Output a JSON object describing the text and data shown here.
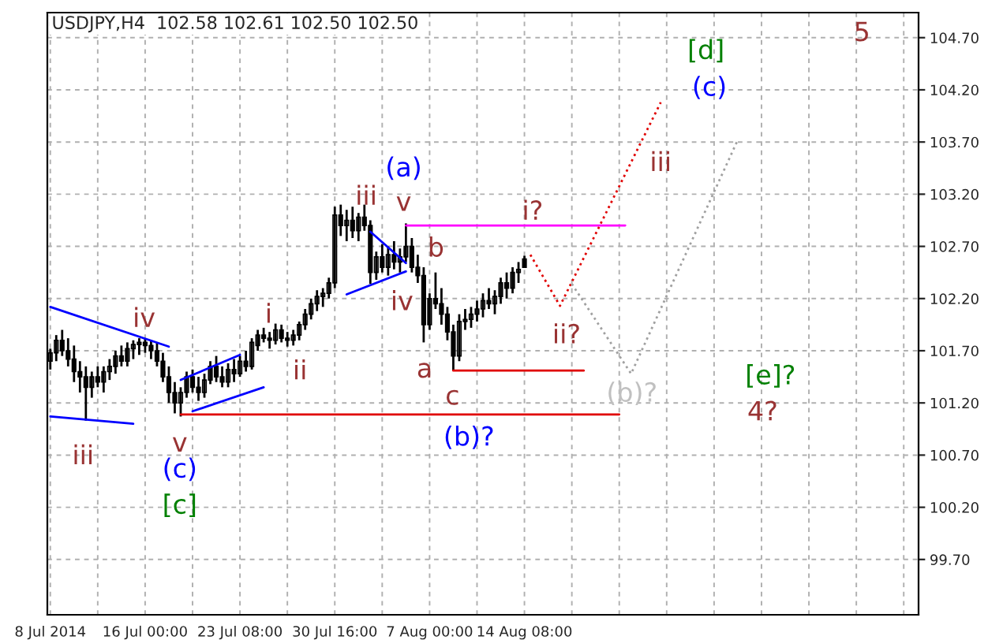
{
  "chart_data": {
    "type": "candlestick",
    "title": "USDJPY,H4  102.58 102.61 102.50 102.50",
    "categories": [
      "8 Jul 2014",
      null,
      null,
      null,
      null,
      null,
      null,
      null,
      null,
      null,
      null,
      null,
      null,
      null,
      null,
      null,
      "16 Jul 00:00",
      null,
      null,
      null,
      null,
      null,
      null,
      null,
      null,
      null,
      null,
      null,
      null,
      null,
      null,
      null,
      "23 Jul 08:00",
      null,
      null,
      null,
      null,
      null,
      null,
      null,
      null,
      null,
      null,
      null,
      null,
      null,
      null,
      null,
      "30 Jul 16:00",
      null,
      null,
      null,
      null,
      null,
      null,
      null,
      null,
      null,
      null,
      null,
      null,
      null,
      null,
      null,
      "7 Aug 00:00",
      null,
      null,
      null,
      null,
      null,
      null,
      null,
      null,
      null,
      null,
      null,
      null,
      null,
      null,
      null,
      "14 Aug 08:00",
      null,
      null,
      null,
      null,
      null,
      null,
      null,
      null,
      null,
      null,
      null,
      null,
      null,
      null,
      null,
      null,
      null,
      null,
      null,
      null,
      null,
      null,
      null,
      null,
      null,
      null,
      null,
      null,
      null,
      null,
      null,
      null,
      null,
      null,
      null,
      null,
      null,
      null,
      null,
      null,
      null,
      null,
      null,
      null,
      null,
      null,
      null,
      null,
      null,
      null,
      null,
      null,
      null,
      null,
      null,
      null,
      null,
      null,
      null,
      null,
      null,
      null,
      null,
      null,
      null,
      null
    ],
    "ohlc": [
      [
        101.6,
        101.72,
        101.52,
        101.68
      ],
      [
        101.68,
        101.85,
        101.6,
        101.8
      ],
      [
        101.8,
        101.9,
        101.65,
        101.7
      ],
      [
        101.7,
        101.82,
        101.55,
        101.62
      ],
      [
        101.62,
        101.75,
        101.4,
        101.5
      ],
      [
        101.5,
        101.6,
        101.3,
        101.45
      ],
      [
        101.45,
        101.55,
        101.03,
        101.35
      ],
      [
        101.35,
        101.5,
        101.25,
        101.45
      ],
      [
        101.45,
        101.55,
        101.35,
        101.4
      ],
      [
        101.4,
        101.55,
        101.3,
        101.5
      ],
      [
        101.5,
        101.62,
        101.42,
        101.55
      ],
      [
        101.55,
        101.7,
        101.48,
        101.65
      ],
      [
        101.65,
        101.75,
        101.55,
        101.6
      ],
      [
        101.6,
        101.78,
        101.55,
        101.72
      ],
      [
        101.72,
        101.8,
        101.62,
        101.76
      ],
      [
        101.76,
        101.82,
        101.66,
        101.78
      ],
      [
        101.78,
        101.82,
        101.68,
        101.75
      ],
      [
        101.75,
        101.8,
        101.62,
        101.7
      ],
      [
        101.7,
        101.78,
        101.55,
        101.6
      ],
      [
        101.6,
        101.68,
        101.4,
        101.45
      ],
      [
        101.45,
        101.55,
        101.2,
        101.3
      ],
      [
        101.3,
        101.4,
        101.1,
        101.2
      ],
      [
        101.2,
        101.35,
        101.07,
        101.3
      ],
      [
        101.3,
        101.5,
        101.25,
        101.45
      ],
      [
        101.45,
        101.52,
        101.3,
        101.35
      ],
      [
        101.35,
        101.45,
        101.22,
        101.3
      ],
      [
        101.3,
        101.48,
        101.25,
        101.42
      ],
      [
        101.42,
        101.6,
        101.38,
        101.55
      ],
      [
        101.55,
        101.65,
        101.4,
        101.45
      ],
      [
        101.45,
        101.55,
        101.35,
        101.4
      ],
      [
        101.4,
        101.58,
        101.35,
        101.52
      ],
      [
        101.52,
        101.62,
        101.4,
        101.48
      ],
      [
        101.48,
        101.65,
        101.45,
        101.6
      ],
      [
        101.6,
        101.7,
        101.5,
        101.55
      ],
      [
        101.55,
        101.82,
        101.52,
        101.78
      ],
      [
        101.75,
        101.9,
        101.7,
        101.85
      ],
      [
        101.85,
        101.92,
        101.78,
        101.82
      ],
      [
        101.82,
        101.88,
        101.72,
        101.8
      ],
      [
        101.8,
        101.96,
        101.76,
        101.9
      ],
      [
        101.9,
        101.95,
        101.78,
        101.82
      ],
      [
        101.82,
        101.88,
        101.74,
        101.8
      ],
      [
        101.8,
        101.9,
        101.75,
        101.85
      ],
      [
        101.85,
        101.98,
        101.8,
        101.95
      ],
      [
        101.95,
        102.1,
        101.9,
        102.05
      ],
      [
        102.05,
        102.2,
        102.0,
        102.15
      ],
      [
        102.15,
        102.28,
        102.08,
        102.22
      ],
      [
        102.22,
        102.3,
        102.12,
        102.25
      ],
      [
        102.25,
        102.4,
        102.2,
        102.35
      ],
      [
        102.35,
        103.08,
        102.3,
        103.0
      ],
      [
        103.0,
        103.1,
        102.8,
        102.9
      ],
      [
        102.9,
        103.05,
        102.75,
        102.95
      ],
      [
        102.95,
        103.08,
        102.78,
        102.85
      ],
      [
        102.85,
        103.02,
        102.75,
        102.98
      ],
      [
        102.98,
        103.1,
        102.85,
        102.9
      ],
      [
        102.9,
        102.95,
        102.34,
        102.45
      ],
      [
        102.45,
        102.65,
        102.38,
        102.6
      ],
      [
        102.6,
        102.72,
        102.45,
        102.5
      ],
      [
        102.5,
        102.7,
        102.42,
        102.62
      ],
      [
        102.62,
        102.75,
        102.48,
        102.55
      ],
      [
        102.55,
        102.68,
        102.45,
        102.6
      ],
      [
        102.6,
        102.92,
        102.55,
        102.7
      ],
      [
        102.7,
        102.78,
        102.45,
        102.5
      ],
      [
        102.5,
        102.62,
        102.35,
        102.42
      ],
      [
        102.42,
        102.5,
        101.78,
        101.95
      ],
      [
        101.95,
        102.25,
        101.9,
        102.2
      ],
      [
        102.2,
        102.45,
        102.1,
        102.15
      ],
      [
        102.15,
        102.3,
        101.95,
        102.05
      ],
      [
        102.05,
        102.12,
        101.8,
        101.88
      ],
      [
        101.88,
        101.95,
        101.51,
        101.65
      ],
      [
        101.65,
        102.05,
        101.6,
        101.98
      ],
      [
        101.98,
        102.1,
        101.9,
        102.0
      ],
      [
        102.0,
        102.12,
        101.92,
        102.05
      ],
      [
        102.05,
        102.18,
        101.98,
        102.1
      ],
      [
        102.1,
        102.25,
        102.02,
        102.18
      ],
      [
        102.18,
        102.3,
        102.1,
        102.15
      ],
      [
        102.15,
        102.28,
        102.05,
        102.22
      ],
      [
        102.22,
        102.4,
        102.15,
        102.35
      ],
      [
        102.35,
        102.45,
        102.2,
        102.3
      ],
      [
        102.3,
        102.5,
        102.25,
        102.45
      ],
      [
        102.45,
        102.55,
        102.35,
        102.48
      ],
      [
        102.58,
        102.61,
        102.5,
        102.5
      ],
      null,
      null,
      null,
      null,
      null,
      null,
      null,
      null,
      null,
      null,
      null,
      null,
      null,
      null,
      null,
      null,
      null,
      null,
      null,
      null,
      null,
      null,
      null,
      null,
      null,
      null,
      null,
      null,
      null,
      null,
      null,
      null,
      null,
      null,
      null,
      null,
      null,
      null,
      null,
      null,
      null,
      null,
      null,
      null,
      null,
      null,
      null,
      null,
      null,
      null,
      null,
      null,
      null,
      null,
      null,
      null,
      null,
      null,
      null,
      null,
      null,
      null,
      null,
      null,
      null,
      null
    ],
    "color": "#000000",
    "series": [
      {
        "type": "line",
        "color": "#0000ff",
        "line_style": "solid",
        "values": [
          102.12,
          null,
          null,
          null,
          null,
          null,
          null,
          null,
          null,
          null,
          null,
          null,
          null,
          null,
          null,
          null,
          null,
          null,
          null,
          null,
          101.74,
          null,
          null,
          null,
          null,
          null,
          null,
          null,
          null,
          null,
          null,
          null,
          null,
          null,
          null,
          null,
          null,
          null,
          null,
          null,
          null,
          null,
          null,
          null,
          null,
          null,
          null,
          null,
          null,
          null,
          null,
          null,
          null,
          null,
          null,
          null,
          null,
          null,
          null,
          null,
          null,
          null,
          null,
          null,
          null,
          null,
          null,
          null,
          null,
          null,
          null,
          null,
          null,
          null,
          null,
          null,
          null,
          null,
          null,
          null,
          null,
          null,
          null,
          null,
          null,
          null,
          null,
          null,
          null,
          null,
          null,
          null,
          null,
          null,
          null,
          null,
          null,
          null,
          null,
          null,
          null,
          null,
          null,
          null,
          null,
          null,
          null,
          null,
          null,
          null,
          null,
          null,
          null,
          null,
          null,
          null,
          null,
          null,
          null,
          null,
          null,
          null,
          null,
          null,
          null,
          null,
          null,
          null,
          null,
          null,
          null,
          null,
          null,
          null,
          null,
          null,
          null,
          null,
          null,
          null,
          null,
          null,
          null,
          null,
          null,
          null,
          null
        ]
      },
      {
        "type": "line",
        "color": "#0000ff",
        "line_style": "solid",
        "values": [
          101.07,
          null,
          null,
          null,
          null,
          null,
          null,
          null,
          null,
          null,
          null,
          null,
          null,
          null,
          101.0,
          null,
          null,
          null,
          null,
          null,
          null,
          null,
          null,
          null,
          null,
          null,
          null,
          null,
          null,
          null,
          null,
          null,
          null,
          null,
          null,
          null,
          null,
          null,
          null,
          null,
          null,
          null,
          null,
          null,
          null,
          null,
          null,
          null,
          null,
          null,
          null,
          null,
          null,
          null,
          null,
          null,
          null,
          null,
          null,
          null,
          null,
          null,
          null,
          null,
          null,
          null,
          null,
          null,
          null,
          null,
          null,
          null,
          null,
          null,
          null,
          null,
          null,
          null,
          null,
          null,
          null,
          null,
          null,
          null,
          null,
          null,
          null,
          null,
          null,
          null,
          null,
          null,
          null,
          null,
          null,
          null,
          null,
          null,
          null,
          null,
          null,
          null,
          null,
          null,
          null,
          null,
          null,
          null,
          null,
          null,
          null,
          null,
          null,
          null,
          null,
          null,
          null,
          null,
          null,
          null,
          null,
          null,
          null,
          null,
          null,
          null,
          null,
          null,
          null,
          null,
          null,
          null,
          null,
          null,
          null,
          null,
          null,
          null,
          null,
          null,
          null,
          null,
          null,
          null,
          null,
          null,
          null
        ]
      },
      {
        "type": "line",
        "color": "#0000ff",
        "line_style": "solid",
        "values": [
          null,
          null,
          null,
          null,
          null,
          null,
          null,
          null,
          null,
          null,
          null,
          null,
          null,
          null,
          null,
          null,
          null,
          null,
          null,
          null,
          null,
          null,
          101.42,
          null,
          null,
          null,
          null,
          null,
          null,
          null,
          null,
          null,
          101.66,
          null,
          null,
          null,
          null,
          null,
          null,
          null,
          null,
          null,
          null,
          null,
          null,
          null,
          null,
          null,
          null,
          null,
          null,
          null,
          null,
          null,
          null,
          null,
          null,
          null,
          null,
          null,
          null,
          null,
          null,
          null,
          null,
          null,
          null,
          null,
          null,
          null,
          null,
          null,
          null,
          null,
          null,
          null,
          null,
          null,
          null,
          null,
          null,
          null,
          null,
          null,
          null,
          null,
          null,
          null,
          null,
          null,
          null,
          null,
          null,
          null,
          null,
          null,
          null,
          null,
          null,
          null,
          null,
          null,
          null,
          null,
          null,
          null,
          null,
          null,
          null,
          null,
          null,
          null,
          null,
          null,
          null,
          null,
          null,
          null,
          null,
          null,
          null,
          null,
          null,
          null,
          null,
          null,
          null,
          null,
          null,
          null,
          null,
          null,
          null,
          null,
          null,
          null,
          null,
          null,
          null,
          null,
          null,
          null,
          null,
          null,
          null,
          null,
          null
        ]
      },
      {
        "type": "line",
        "color": "#0000ff",
        "line_style": "solid",
        "values": [
          null,
          null,
          null,
          null,
          null,
          null,
          null,
          null,
          null,
          null,
          null,
          null,
          null,
          null,
          null,
          null,
          null,
          null,
          null,
          null,
          null,
          null,
          null,
          null,
          101.12,
          null,
          null,
          null,
          null,
          null,
          null,
          null,
          null,
          null,
          null,
          null,
          101.35,
          null,
          null,
          null,
          null,
          null,
          null,
          null,
          null,
          null,
          null,
          null,
          null,
          null,
          null,
          null,
          null,
          null,
          null,
          null,
          null,
          null,
          null,
          null,
          null,
          null,
          null,
          null,
          null,
          null,
          null,
          null,
          null,
          null,
          null,
          null,
          null,
          null,
          null,
          null,
          null,
          null,
          null,
          null,
          null,
          null,
          null,
          null,
          null,
          null,
          null,
          null,
          null,
          null,
          null,
          null,
          null,
          null,
          null,
          null,
          null,
          null,
          null,
          null,
          null,
          null,
          null,
          null,
          null,
          null,
          null,
          null,
          null,
          null,
          null,
          null,
          null,
          null,
          null,
          null,
          null,
          null,
          null,
          null,
          null,
          null,
          null,
          null,
          null,
          null,
          null,
          null,
          null,
          null,
          null,
          null,
          null,
          null,
          null,
          null,
          null,
          null,
          null,
          null,
          null,
          null,
          null,
          null,
          null,
          null,
          null
        ]
      },
      {
        "type": "line",
        "color": "#0000ff",
        "line_style": "solid",
        "values": [
          null,
          null,
          null,
          null,
          null,
          null,
          null,
          null,
          null,
          null,
          null,
          null,
          null,
          null,
          null,
          null,
          null,
          null,
          null,
          null,
          null,
          null,
          null,
          null,
          null,
          null,
          null,
          null,
          null,
          null,
          null,
          null,
          null,
          null,
          null,
          null,
          null,
          null,
          null,
          null,
          null,
          null,
          null,
          null,
          null,
          null,
          null,
          null,
          null,
          null,
          null,
          null,
          null,
          null,
          102.84,
          null,
          null,
          null,
          null,
          null,
          102.54,
          null,
          null,
          null,
          null,
          null,
          null,
          null,
          null,
          null,
          null,
          null,
          null,
          null,
          null,
          null,
          null,
          null,
          null,
          null,
          null,
          null,
          null,
          null,
          null,
          null,
          null,
          null,
          null,
          null,
          null,
          null,
          null,
          null,
          null,
          null,
          null,
          null,
          null,
          null,
          null,
          null,
          null,
          null,
          null,
          null,
          null,
          null,
          null,
          null,
          null,
          null,
          null,
          null,
          null,
          null,
          null,
          null,
          null,
          null,
          null,
          null,
          null,
          null,
          null,
          null,
          null,
          null,
          null,
          null,
          null,
          null,
          null,
          null,
          null,
          null,
          null,
          null,
          null,
          null,
          null,
          null,
          null,
          null,
          null,
          null,
          null
        ]
      },
      {
        "type": "line",
        "color": "#0000ff",
        "line_style": "solid",
        "values": [
          null,
          null,
          null,
          null,
          null,
          null,
          null,
          null,
          null,
          null,
          null,
          null,
          null,
          null,
          null,
          null,
          null,
          null,
          null,
          null,
          null,
          null,
          null,
          null,
          null,
          null,
          null,
          null,
          null,
          null,
          null,
          null,
          null,
          null,
          null,
          null,
          null,
          null,
          null,
          null,
          null,
          null,
          null,
          null,
          null,
          null,
          null,
          null,
          null,
          null,
          102.24,
          null,
          null,
          null,
          null,
          null,
          null,
          null,
          null,
          null,
          102.46,
          null,
          null,
          null,
          null,
          null,
          null,
          null,
          null,
          null,
          null,
          null,
          null,
          null,
          null,
          null,
          null,
          null,
          null,
          null,
          null,
          null,
          null,
          null,
          null,
          null,
          null,
          null,
          null,
          null,
          null,
          null,
          null,
          null,
          null,
          null,
          null,
          null,
          null,
          null,
          null,
          null,
          null,
          null,
          null,
          null,
          null,
          null,
          null,
          null,
          null,
          null,
          null,
          null,
          null,
          null,
          null,
          null,
          null,
          null,
          null,
          null,
          null,
          null,
          null,
          null,
          null,
          null,
          null,
          null,
          null,
          null,
          null,
          null,
          null,
          null,
          null,
          null,
          null,
          null,
          null,
          null,
          null,
          null,
          null,
          null,
          null
        ]
      },
      {
        "type": "line",
        "color": "#ff00ff",
        "line_style": "solid",
        "values": [
          null,
          null,
          null,
          null,
          null,
          null,
          null,
          null,
          null,
          null,
          null,
          null,
          null,
          null,
          null,
          null,
          null,
          null,
          null,
          null,
          null,
          null,
          null,
          null,
          null,
          null,
          null,
          null,
          null,
          null,
          null,
          null,
          null,
          null,
          null,
          null,
          null,
          null,
          null,
          null,
          null,
          null,
          null,
          null,
          null,
          null,
          null,
          null,
          null,
          null,
          null,
          null,
          null,
          null,
          null,
          null,
          null,
          null,
          null,
          null,
          102.9,
          null,
          null,
          null,
          null,
          null,
          null,
          null,
          null,
          null,
          null,
          null,
          null,
          null,
          null,
          null,
          null,
          null,
          null,
          null,
          null,
          null,
          null,
          null,
          null,
          null,
          null,
          null,
          null,
          null,
          null,
          null,
          null,
          null,
          null,
          null,
          null,
          102.9,
          null,
          null,
          null,
          null,
          null,
          null,
          null,
          null,
          null,
          null,
          null,
          null,
          null,
          null,
          null,
          null,
          null,
          null,
          null,
          null,
          null,
          null,
          null,
          null,
          null,
          null,
          null,
          null,
          null,
          null,
          null,
          null,
          null,
          null,
          null,
          null,
          null,
          null,
          null,
          null,
          null,
          null,
          null,
          null,
          null,
          null,
          null,
          null,
          null
        ]
      },
      {
        "type": "line",
        "color": "#e00000",
        "line_style": "solid",
        "values": [
          null,
          null,
          null,
          null,
          null,
          null,
          null,
          null,
          null,
          null,
          null,
          null,
          null,
          null,
          null,
          null,
          null,
          null,
          null,
          null,
          null,
          null,
          null,
          null,
          null,
          null,
          null,
          null,
          null,
          null,
          null,
          null,
          null,
          null,
          null,
          null,
          null,
          null,
          null,
          null,
          null,
          null,
          null,
          null,
          null,
          null,
          null,
          null,
          null,
          null,
          null,
          null,
          null,
          null,
          null,
          null,
          null,
          null,
          null,
          null,
          null,
          null,
          null,
          null,
          null,
          null,
          null,
          null,
          101.51,
          null,
          null,
          null,
          null,
          null,
          null,
          null,
          null,
          null,
          null,
          null,
          null,
          null,
          null,
          null,
          null,
          null,
          null,
          null,
          null,
          null,
          101.51,
          null,
          null,
          null,
          null,
          null,
          null,
          null,
          null,
          null,
          null,
          null,
          null,
          null,
          null,
          null,
          null,
          null,
          null,
          null,
          null,
          null,
          null,
          null,
          null,
          null,
          null,
          null,
          null,
          null,
          null,
          null,
          null,
          null,
          null,
          null,
          null,
          null,
          null,
          null,
          null,
          null,
          null,
          null,
          null,
          null,
          null,
          null,
          null,
          null,
          null,
          null,
          null,
          null,
          null,
          null,
          null
        ]
      },
      {
        "type": "line",
        "color": "#e00000",
        "line_style": "solid",
        "values": [
          null,
          null,
          null,
          null,
          null,
          null,
          null,
          null,
          null,
          null,
          null,
          null,
          null,
          null,
          null,
          null,
          null,
          null,
          null,
          null,
          null,
          null,
          101.09,
          null,
          null,
          null,
          null,
          null,
          null,
          null,
          null,
          null,
          null,
          null,
          null,
          null,
          null,
          null,
          null,
          null,
          null,
          null,
          null,
          null,
          null,
          null,
          null,
          null,
          null,
          null,
          null,
          null,
          null,
          null,
          null,
          null,
          null,
          null,
          null,
          null,
          null,
          null,
          null,
          null,
          null,
          null,
          null,
          null,
          null,
          null,
          null,
          null,
          null,
          null,
          null,
          null,
          null,
          null,
          null,
          null,
          null,
          null,
          null,
          null,
          null,
          null,
          null,
          null,
          null,
          null,
          null,
          null,
          null,
          null,
          null,
          null,
          101.09,
          null,
          null,
          null,
          null,
          null,
          null,
          null,
          null,
          null,
          null,
          null,
          null,
          null,
          null,
          null,
          null,
          null,
          null,
          null,
          null,
          null,
          null,
          null,
          null,
          null,
          null,
          null,
          null,
          null,
          null,
          null,
          null,
          null,
          null,
          null,
          null,
          null,
          null,
          null,
          null,
          null,
          null,
          null,
          null,
          null,
          null,
          null,
          null,
          null,
          null
        ]
      },
      {
        "type": "line",
        "color": "#e00000",
        "line_style": "dotted",
        "values": [
          null,
          null,
          null,
          null,
          null,
          null,
          null,
          null,
          null,
          null,
          null,
          null,
          null,
          null,
          null,
          null,
          null,
          null,
          null,
          null,
          null,
          null,
          null,
          null,
          null,
          null,
          null,
          null,
          null,
          null,
          null,
          null,
          null,
          null,
          null,
          null,
          null,
          null,
          null,
          null,
          null,
          null,
          null,
          null,
          null,
          null,
          null,
          null,
          null,
          null,
          null,
          null,
          null,
          null,
          null,
          null,
          null,
          null,
          null,
          null,
          null,
          null,
          null,
          null,
          null,
          null,
          null,
          null,
          null,
          null,
          null,
          null,
          null,
          null,
          null,
          null,
          null,
          null,
          null,
          null,
          null,
          102.62,
          null,
          null,
          null,
          null,
          102.13,
          null,
          null,
          null,
          null,
          null,
          null,
          null,
          null,
          null,
          null,
          null,
          null,
          null,
          null,
          null,
          null,
          104.08,
          null,
          null,
          null,
          null,
          null,
          null,
          null,
          null,
          null,
          null,
          null,
          null,
          null,
          null,
          null,
          null,
          null,
          null,
          null,
          null,
          null,
          null,
          null,
          null,
          null,
          null,
          null,
          null,
          null,
          null,
          null,
          null,
          null,
          null,
          null,
          null,
          null,
          null,
          null,
          null,
          null,
          null,
          null
        ]
      },
      {
        "type": "line",
        "color": "#a0a0a0",
        "line_style": "dotted",
        "values": [
          null,
          null,
          null,
          null,
          null,
          null,
          null,
          null,
          null,
          null,
          null,
          null,
          null,
          null,
          null,
          null,
          null,
          null,
          null,
          null,
          null,
          null,
          null,
          null,
          null,
          null,
          null,
          null,
          null,
          null,
          null,
          null,
          null,
          null,
          null,
          null,
          null,
          null,
          null,
          null,
          null,
          null,
          null,
          null,
          null,
          null,
          null,
          null,
          null,
          null,
          null,
          null,
          null,
          null,
          null,
          null,
          null,
          null,
          null,
          null,
          null,
          null,
          null,
          null,
          null,
          null,
          null,
          null,
          null,
          null,
          null,
          null,
          null,
          null,
          null,
          null,
          null,
          null,
          null,
          null,
          null,
          null,
          null,
          null,
          null,
          null,
          null,
          null,
          102.34,
          null,
          null,
          null,
          null,
          null,
          null,
          null,
          null,
          null,
          101.48,
          null,
          null,
          null,
          null,
          null,
          null,
          null,
          null,
          null,
          null,
          null,
          null,
          null,
          null,
          null,
          null,
          null,
          103.72,
          null,
          null,
          null,
          null,
          null,
          null,
          null,
          null,
          null,
          null,
          null,
          null,
          null,
          null,
          null,
          null,
          null,
          null,
          null,
          null,
          null,
          null,
          null,
          null,
          null,
          null,
          null,
          null,
          null,
          null
        ]
      }
    ],
    "annotations": [
      "iii",
      "iv",
      "v",
      "(c)",
      "[c]",
      "i",
      "ii",
      "iii",
      "(a)",
      "v",
      "iv",
      "b",
      "a",
      "c",
      "(b)?",
      "i?",
      "ii?",
      "iii",
      "[d]",
      "(c)",
      "5",
      "(b)?",
      "[e]?",
      "4?"
    ],
    "ylim": [
      99.17,
      104.94
    ],
    "yticks": [
      {
        "value": 99.7,
        "label": "99.70"
      },
      {
        "value": 100.2,
        "label": "100.20"
      },
      {
        "value": 100.7,
        "label": "100.70"
      },
      {
        "value": 101.2,
        "label": "101.20"
      },
      {
        "value": 101.7,
        "label": "101.70"
      },
      {
        "value": 102.2,
        "label": "102.20"
      },
      {
        "value": 102.7,
        "label": "102.70"
      },
      {
        "value": 103.2,
        "label": "103.20"
      },
      {
        "value": 103.7,
        "label": "103.70"
      },
      {
        "value": 104.2,
        "label": "104.20"
      },
      {
        "value": 104.7,
        "label": "104.70"
      }
    ],
    "grid": true
  }
}
